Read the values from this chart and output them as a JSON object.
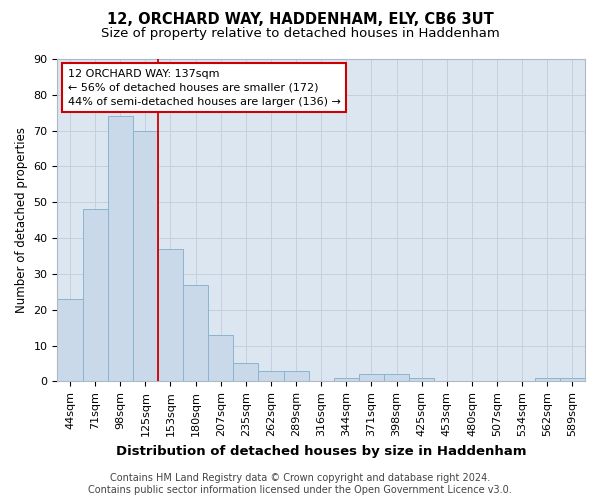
{
  "title": "12, ORCHARD WAY, HADDENHAM, ELY, CB6 3UT",
  "subtitle": "Size of property relative to detached houses in Haddenham",
  "xlabel": "Distribution of detached houses by size in Haddenham",
  "ylabel": "Number of detached properties",
  "footer1": "Contains HM Land Registry data © Crown copyright and database right 2024.",
  "footer2": "Contains public sector information licensed under the Open Government Licence v3.0.",
  "categories": [
    "44sqm",
    "71sqm",
    "98sqm",
    "125sqm",
    "153sqm",
    "180sqm",
    "207sqm",
    "235sqm",
    "262sqm",
    "289sqm",
    "316sqm",
    "344sqm",
    "371sqm",
    "398sqm",
    "425sqm",
    "453sqm",
    "480sqm",
    "507sqm",
    "534sqm",
    "562sqm",
    "589sqm"
  ],
  "values": [
    23,
    48,
    74,
    70,
    37,
    27,
    13,
    5,
    3,
    3,
    0,
    1,
    2,
    2,
    1,
    0,
    0,
    0,
    0,
    1,
    1
  ],
  "bar_color": "#c9d9ea",
  "bar_edge_color": "#8ab4d0",
  "grid_color": "#c5cfe0",
  "bg_color": "#dce6f0",
  "fig_bg_color": "#ffffff",
  "subject_line_color": "#cc0000",
  "annotation_text": "12 ORCHARD WAY: 137sqm\n← 56% of detached houses are smaller (172)\n44% of semi-detached houses are larger (136) →",
  "annotation_box_color": "#ffffff",
  "annotation_box_edge": "#cc0000",
  "ylim": [
    0,
    90
  ],
  "yticks": [
    0,
    10,
    20,
    30,
    40,
    50,
    60,
    70,
    80,
    90
  ],
  "title_fontsize": 10.5,
  "subtitle_fontsize": 9.5,
  "xlabel_fontsize": 9.5,
  "ylabel_fontsize": 8.5,
  "tick_fontsize": 8,
  "annotation_fontsize": 8,
  "footer_fontsize": 7
}
